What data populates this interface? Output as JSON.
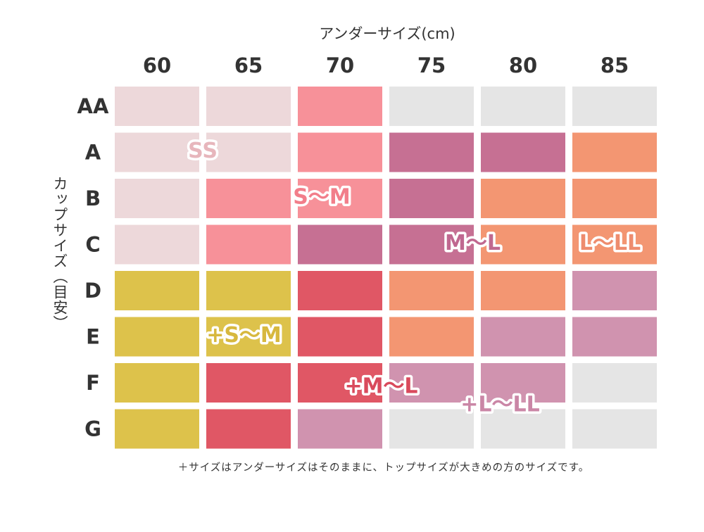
{
  "chart_data": {
    "type": "heatmap",
    "xlabel": "アンダーサイズ(cm)",
    "ylabel": "カップサイズ（目安）",
    "x_categories": [
      "60",
      "65",
      "70",
      "75",
      "80",
      "85"
    ],
    "y_categories": [
      "AA",
      "A",
      "B",
      "C",
      "D",
      "E",
      "F",
      "G"
    ],
    "groups": [
      {
        "name": "SS",
        "color": "#edd8da",
        "label_color": "#e7b6bc"
      },
      {
        "name": "S～M",
        "color": "#f79199",
        "label_color": "#f27e8a"
      },
      {
        "name": "M～L",
        "color": "#c67093",
        "label_color": "#c06890"
      },
      {
        "name": "L～LL",
        "color": "#f39672",
        "label_color": "#ee8c6e"
      },
      {
        "name": "+S～M",
        "color": "#ddc24b",
        "label_color": "#d7b83e"
      },
      {
        "name": "+M～L",
        "color": "#e05765",
        "label_color": "#d94a5c"
      },
      {
        "name": "+L～LL",
        "color": "#d093af",
        "label_color": "#ca86a6"
      },
      {
        "name": "",
        "color": "#e5e5e5",
        "label_color": "#e5e5e5"
      }
    ],
    "cells": [
      [
        "SS",
        "SS",
        "S～M",
        "",
        "",
        ""
      ],
      [
        "SS",
        "SS",
        "S～M",
        "M～L",
        "M～L",
        "L～LL"
      ],
      [
        "SS",
        "S～M",
        "S～M",
        "M～L",
        "L～LL",
        "L～LL"
      ],
      [
        "SS",
        "S～M",
        "M～L",
        "M～L",
        "L～LL",
        "L～LL"
      ],
      [
        "+S～M",
        "+S～M",
        "+M～L",
        "L～LL",
        "L～LL",
        "+L～LL"
      ],
      [
        "+S～M",
        "+S～M",
        "+M～L",
        "L～LL",
        "+L～LL",
        "+L～LL"
      ],
      [
        "+S～M",
        "+M～L",
        "+M～L",
        "+L～LL",
        "+L～LL",
        ""
      ],
      [
        "+S～M",
        "+M～L",
        "+L～LL",
        "",
        "",
        ""
      ]
    ],
    "labels": [
      {
        "text": "SS",
        "group": "SS",
        "col": 0.5,
        "row": 0.95
      },
      {
        "text": "S～M",
        "group": "S～M",
        "col": 1.8,
        "row": 1.95
      },
      {
        "text": "M～L",
        "group": "M～L",
        "col": 3.45,
        "row": 2.95
      },
      {
        "text": "L～LL",
        "group": "L～LL",
        "col": 4.95,
        "row": 2.95
      },
      {
        "text": "+S～M",
        "group": "+S～M",
        "col": 0.95,
        "row": 4.95
      },
      {
        "text": "+M～L",
        "group": "+M～L",
        "col": 2.45,
        "row": 6.05
      },
      {
        "text": "+L～LL",
        "group": "+L～LL",
        "col": 3.75,
        "row": 6.45
      }
    ]
  },
  "note": "＋サイズはアンダーサイズはそのままに、トップサイズが大きめの方のサイズです。"
}
